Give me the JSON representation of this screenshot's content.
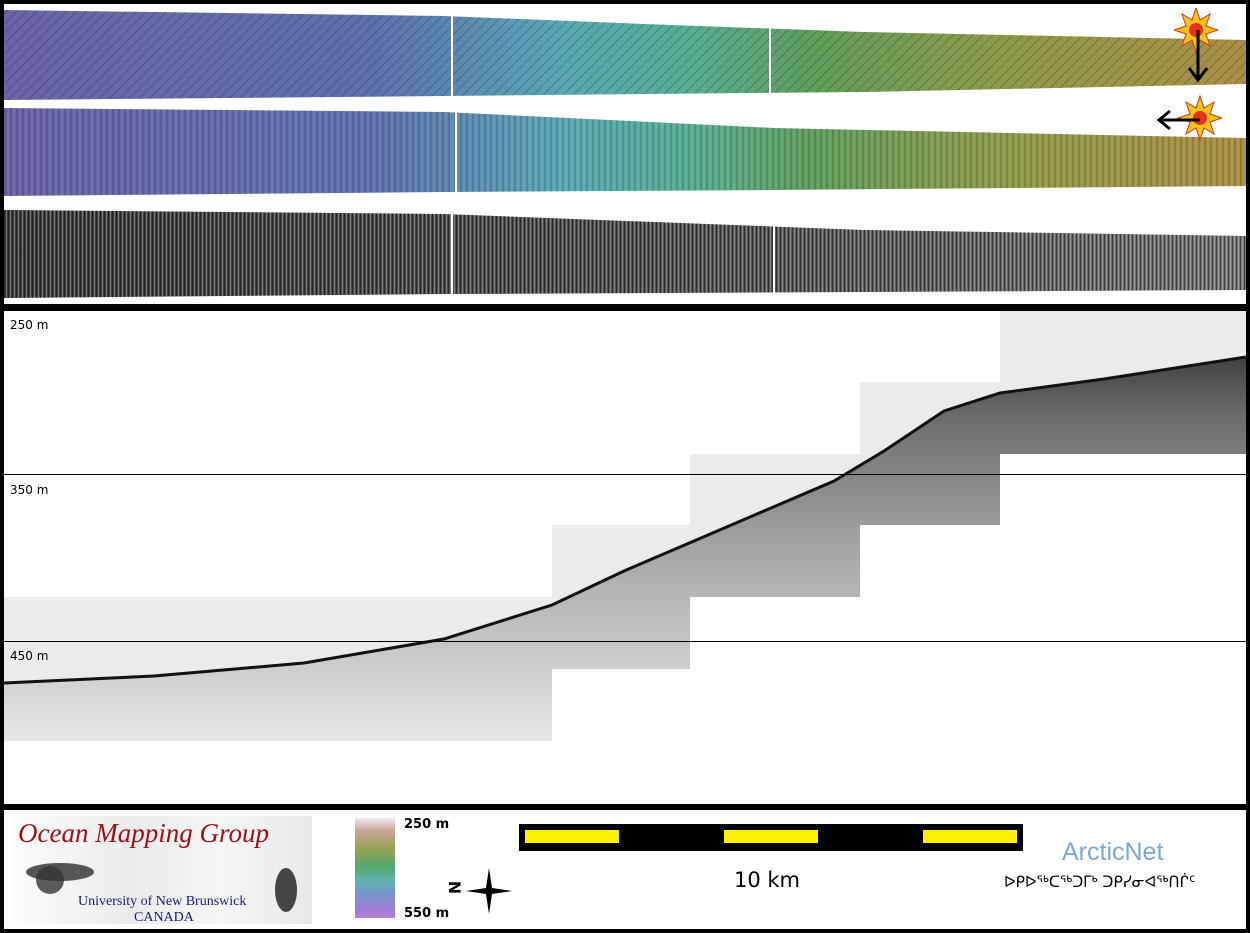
{
  "top_panel": {
    "strips": [
      "shaded-relief-north",
      "shaded-relief-east",
      "backscatter"
    ],
    "icons": [
      "sun-arrow-down-icon",
      "sun-arrow-left-icon"
    ]
  },
  "profile": {
    "depth_labels": [
      "250 m",
      "350 m",
      "450 m"
    ]
  },
  "legend": {
    "logo": {
      "title": "Ocean Mapping Group",
      "subtitle": "University of New Brunswick",
      "country": "CANADA"
    },
    "colorbar": {
      "top_label": "250 m",
      "bottom_label": "550 m"
    },
    "north_arrow": {
      "label": "N"
    },
    "scale_bar": {
      "label": "10 km",
      "colors": [
        "#ffef00",
        "#000000"
      ]
    },
    "arcticnet": {
      "title": "ArcticNet",
      "subtitle": "ᐅᑭᐅᖅᑕᖅᑐᒥᒃ ᑐᑭᓯᓂᐊᖅᑎᒌᑦ"
    }
  }
}
